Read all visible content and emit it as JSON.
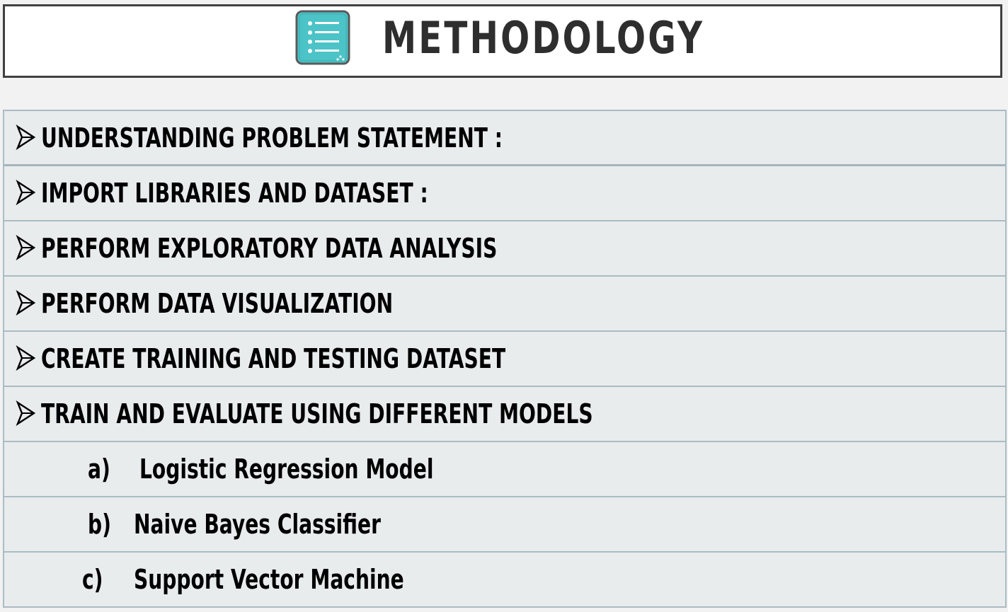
{
  "header": {
    "title": "METHODOLOGY",
    "icon": "list-document-icon",
    "icon_color": "#4cc3c7"
  },
  "steps": [
    {
      "label": "UNDERSTANDING PROBLEM STATEMENT :"
    },
    {
      "label": "IMPORT LIBRARIES AND DATASET :"
    },
    {
      "label": "PERFORM EXPLORATORY DATA ANALYSIS"
    },
    {
      "label": "PERFORM DATA VISUALIZATION"
    },
    {
      "label": "CREATE TRAINING AND TESTING DATASET"
    },
    {
      "label": "TRAIN AND EVALUATE USING DIFFERENT MODELS"
    }
  ],
  "models": [
    {
      "marker": "a)",
      "label": "Logistic Regression Model"
    },
    {
      "marker": "b)",
      "label": "Naive Bayes Classifier"
    },
    {
      "marker": "c)",
      "label": "Support Vector Machine"
    }
  ],
  "colors": {
    "row_background": "#e9eced",
    "row_border": "#a9bcc4",
    "title_border": "#404040",
    "title_text": "#2e2e2e"
  }
}
